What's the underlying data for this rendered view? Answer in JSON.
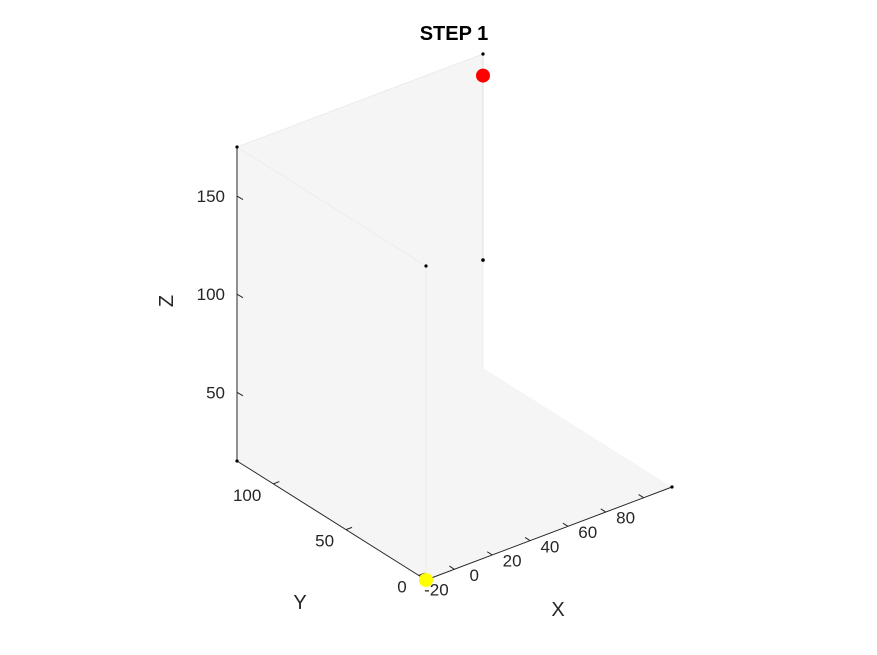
{
  "chart_data": {
    "type": "scatter",
    "title": "STEP 1",
    "xlabel": "X",
    "ylabel": "Y",
    "zlabel": "Z",
    "xlim": [
      -35,
      95
    ],
    "ylim": [
      -5,
      125
    ],
    "zlim": [
      15,
      175
    ],
    "xticks": [
      -20,
      0,
      20,
      40,
      60,
      80
    ],
    "yticks": [
      0,
      50,
      100
    ],
    "zticks": [
      50,
      100,
      150
    ],
    "grid": false,
    "background": "#f5f5f5",
    "points": [
      {
        "x": -35,
        "y": -5,
        "z": 15,
        "color": "#ffff00"
      },
      {
        "x": 95,
        "y": 125,
        "z": 164,
        "color": "#ff0000"
      },
      {
        "x": 95,
        "y": 125,
        "z": 70,
        "color": "#000000"
      }
    ]
  }
}
